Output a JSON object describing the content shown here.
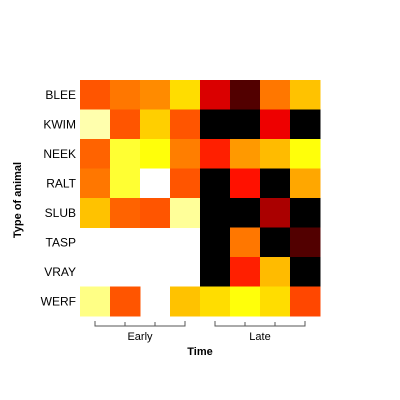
{
  "chart_data": {
    "type": "heatmap",
    "xlabel": "Time",
    "ylabel": "Type of animal",
    "rows": [
      "BLEE",
      "KWIM",
      "NEEK",
      "RALT",
      "SLUB",
      "TASP",
      "VRAY",
      "WERF"
    ],
    "column_count": 8,
    "column_groups": [
      {
        "label": "Early",
        "columns": [
          0,
          1,
          2,
          3
        ]
      },
      {
        "label": "Late",
        "columns": [
          4,
          5,
          6,
          7
        ]
      }
    ],
    "value_range": [
      0,
      1
    ],
    "colormap": "hot",
    "values": [
      [
        0.5,
        0.55,
        0.58,
        0.7,
        0.32,
        0.12,
        0.55,
        0.66
      ],
      [
        0.92,
        0.5,
        0.68,
        0.5,
        0.0,
        0.0,
        0.35,
        0.0
      ],
      [
        0.52,
        0.8,
        0.76,
        0.56,
        0.42,
        0.6,
        0.65,
        0.76
      ],
      [
        0.55,
        0.8,
        1.0,
        0.5,
        0.0,
        0.4,
        0.0,
        0.62
      ],
      [
        0.66,
        0.52,
        0.5,
        0.9,
        0.0,
        0.0,
        0.25,
        0.0
      ],
      [
        null,
        null,
        null,
        null,
        0.0,
        0.55,
        0.0,
        0.12
      ],
      [
        null,
        null,
        null,
        null,
        0.0,
        0.42,
        0.65,
        0.0
      ],
      [
        0.88,
        0.5,
        null,
        0.66,
        0.7,
        0.76,
        0.7,
        0.48
      ]
    ]
  }
}
